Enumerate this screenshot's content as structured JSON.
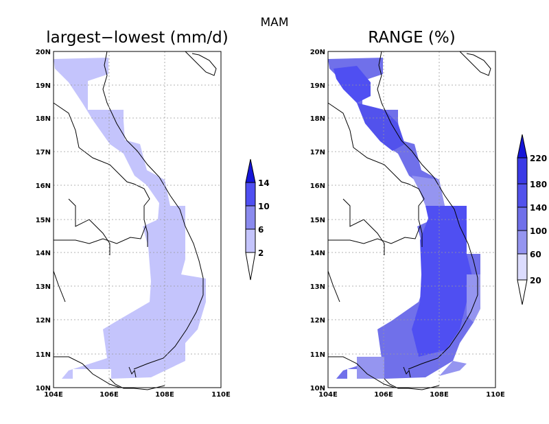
{
  "title": "MAM",
  "panels": [
    {
      "title": "largest−lowest (mm/d)",
      "lat_ticks": [
        "20N",
        "19N",
        "18N",
        "17N",
        "16N",
        "15N",
        "14N",
        "13N",
        "12N",
        "11N",
        "10N"
      ],
      "lon_ticks": [
        "104E",
        "106E",
        "108E",
        "110E"
      ],
      "colorbar_labels": [
        "14",
        "10",
        "6",
        "2"
      ],
      "colors": [
        "#c4c4fc",
        "#8a8aee",
        "#4f4ff2",
        "#1515d8"
      ],
      "colorbar_has_open_lower": true,
      "colorbar_has_open_upper": true
    },
    {
      "title": "RANGE (%)",
      "lat_ticks": [
        "20N",
        "19N",
        "18N",
        "17N",
        "16N",
        "15N",
        "14N",
        "13N",
        "12N",
        "11N",
        "10N"
      ],
      "lon_ticks": [
        "104E",
        "106E",
        "108E",
        "110E"
      ],
      "colorbar_labels": [
        "220",
        "180",
        "140",
        "100",
        "60",
        "20"
      ],
      "colors": [
        "#dcdcfe",
        "#b9b9f7",
        "#9595f0",
        "#7070ea",
        "#5252ec",
        "#3a3ae6",
        "#1515d8"
      ],
      "colorbar_has_open_lower": true,
      "colorbar_has_open_upper": true
    }
  ],
  "extent": {
    "lon": [
      104,
      110
    ],
    "lat": [
      10,
      20
    ]
  },
  "grid": "dotted"
}
